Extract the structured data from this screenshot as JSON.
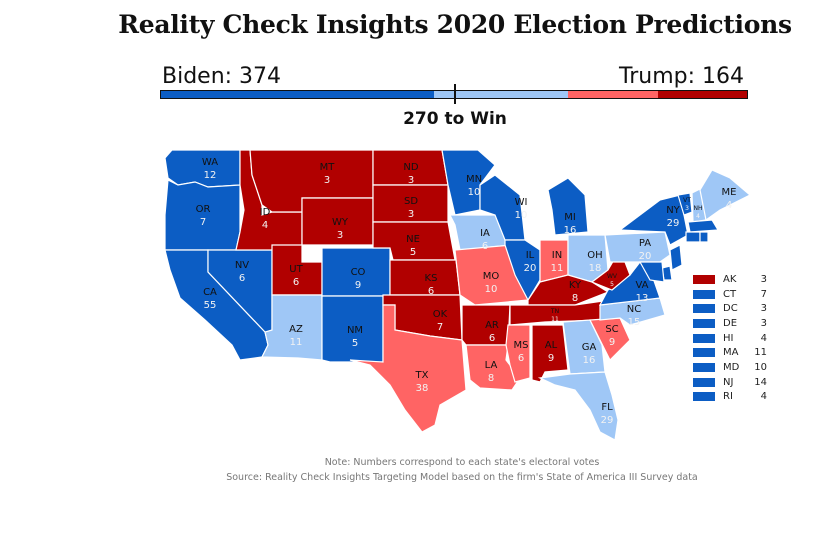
{
  "title": "Reality Check Insights 2020 Election Predictions",
  "colors": {
    "solid_d": "#0c5dc4",
    "lean_d": "#9fc7f6",
    "lean_r": "#ff6464",
    "solid_r": "#b10000"
  },
  "tally": {
    "biden_label": "Biden: 374",
    "trump_label": "Trump: 164",
    "biden": 374,
    "trump": 164,
    "threshold_label": "270 to Win",
    "threshold": 270,
    "total": 538,
    "segments": [
      {
        "name": "solid-biden",
        "category": "solid_d",
        "ev": 251
      },
      {
        "name": "lean-biden",
        "category": "lean_d",
        "ev": 123
      },
      {
        "name": "lean-trump",
        "category": "lean_r",
        "ev": 82
      },
      {
        "name": "solid-trump",
        "category": "solid_r",
        "ev": 82
      }
    ]
  },
  "states": [
    {
      "abbr": "WA",
      "ev": "12",
      "cat": "solid_d"
    },
    {
      "abbr": "OR",
      "ev": "7",
      "cat": "solid_d"
    },
    {
      "abbr": "CA",
      "ev": "55",
      "cat": "solid_d"
    },
    {
      "abbr": "NV",
      "ev": "6",
      "cat": "solid_d"
    },
    {
      "abbr": "ID",
      "ev": "4",
      "cat": "solid_r"
    },
    {
      "abbr": "MT",
      "ev": "3",
      "cat": "solid_r"
    },
    {
      "abbr": "WY",
      "ev": "3",
      "cat": "solid_r"
    },
    {
      "abbr": "UT",
      "ev": "6",
      "cat": "solid_r"
    },
    {
      "abbr": "AZ",
      "ev": "11",
      "cat": "lean_d"
    },
    {
      "abbr": "CO",
      "ev": "9",
      "cat": "solid_d"
    },
    {
      "abbr": "NM",
      "ev": "5",
      "cat": "solid_d"
    },
    {
      "abbr": "ND",
      "ev": "3",
      "cat": "solid_r"
    },
    {
      "abbr": "SD",
      "ev": "3",
      "cat": "solid_r"
    },
    {
      "abbr": "NE",
      "ev": "5",
      "cat": "solid_r"
    },
    {
      "abbr": "KS",
      "ev": "6",
      "cat": "solid_r"
    },
    {
      "abbr": "OK",
      "ev": "7",
      "cat": "solid_r"
    },
    {
      "abbr": "TX",
      "ev": "38",
      "cat": "lean_r"
    },
    {
      "abbr": "MN",
      "ev": "10",
      "cat": "solid_d"
    },
    {
      "abbr": "IA",
      "ev": "6",
      "cat": "lean_d"
    },
    {
      "abbr": "MO",
      "ev": "10",
      "cat": "lean_r"
    },
    {
      "abbr": "AR",
      "ev": "6",
      "cat": "solid_r"
    },
    {
      "abbr": "LA",
      "ev": "8",
      "cat": "lean_r"
    },
    {
      "abbr": "WI",
      "ev": "10",
      "cat": "solid_d"
    },
    {
      "abbr": "IL",
      "ev": "20",
      "cat": "solid_d"
    },
    {
      "abbr": "MI",
      "ev": "16",
      "cat": "solid_d"
    },
    {
      "abbr": "IN",
      "ev": "11",
      "cat": "lean_r"
    },
    {
      "abbr": "OH",
      "ev": "18",
      "cat": "lean_d"
    },
    {
      "abbr": "KY",
      "ev": "8",
      "cat": "solid_r"
    },
    {
      "abbr": "TN",
      "ev": "11",
      "cat": "solid_r"
    },
    {
      "abbr": "MS",
      "ev": "6",
      "cat": "lean_r"
    },
    {
      "abbr": "AL",
      "ev": "9",
      "cat": "solid_r"
    },
    {
      "abbr": "GA",
      "ev": "16",
      "cat": "lean_d"
    },
    {
      "abbr": "FL",
      "ev": "29",
      "cat": "lean_d"
    },
    {
      "abbr": "SC",
      "ev": "9",
      "cat": "lean_r"
    },
    {
      "abbr": "NC",
      "ev": "15",
      "cat": "lean_d"
    },
    {
      "abbr": "VA",
      "ev": "13",
      "cat": "solid_d"
    },
    {
      "abbr": "WV",
      "ev": "5",
      "cat": "solid_r"
    },
    {
      "abbr": "PA",
      "ev": "20",
      "cat": "lean_d"
    },
    {
      "abbr": "NY",
      "ev": "29",
      "cat": "solid_d"
    },
    {
      "abbr": "VT",
      "ev": "3",
      "cat": "solid_d"
    },
    {
      "abbr": "NH",
      "ev": "4",
      "cat": "lean_d"
    },
    {
      "abbr": "ME",
      "ev": "4",
      "cat": "lean_d"
    },
    {
      "abbr": "MA",
      "ev": "",
      "cat": "solid_d"
    },
    {
      "abbr": "CT",
      "ev": "",
      "cat": "solid_d"
    },
    {
      "abbr": "RI",
      "ev": "",
      "cat": "solid_d"
    },
    {
      "abbr": "NJ",
      "ev": "",
      "cat": "solid_d"
    },
    {
      "abbr": "DE",
      "ev": "",
      "cat": "solid_d"
    },
    {
      "abbr": "MD",
      "ev": "",
      "cat": "solid_d"
    }
  ],
  "legend": [
    {
      "abbr": "AK",
      "ev": "3",
      "cat": "solid_r"
    },
    {
      "abbr": "CT",
      "ev": "7",
      "cat": "solid_d"
    },
    {
      "abbr": "DC",
      "ev": "3",
      "cat": "solid_d"
    },
    {
      "abbr": "DE",
      "ev": "3",
      "cat": "solid_d"
    },
    {
      "abbr": "HI",
      "ev": "4",
      "cat": "solid_d"
    },
    {
      "abbr": "MA",
      "ev": "11",
      "cat": "solid_d"
    },
    {
      "abbr": "MD",
      "ev": "10",
      "cat": "solid_d"
    },
    {
      "abbr": "NJ",
      "ev": "14",
      "cat": "solid_d"
    },
    {
      "abbr": "RI",
      "ev": "4",
      "cat": "solid_d"
    }
  ],
  "notes": {
    "note": "Note: Numbers correspond to each state's electoral votes",
    "source": "Source: Reality Check Insights Targeting Model based on the firm's State of America III Survey data"
  }
}
